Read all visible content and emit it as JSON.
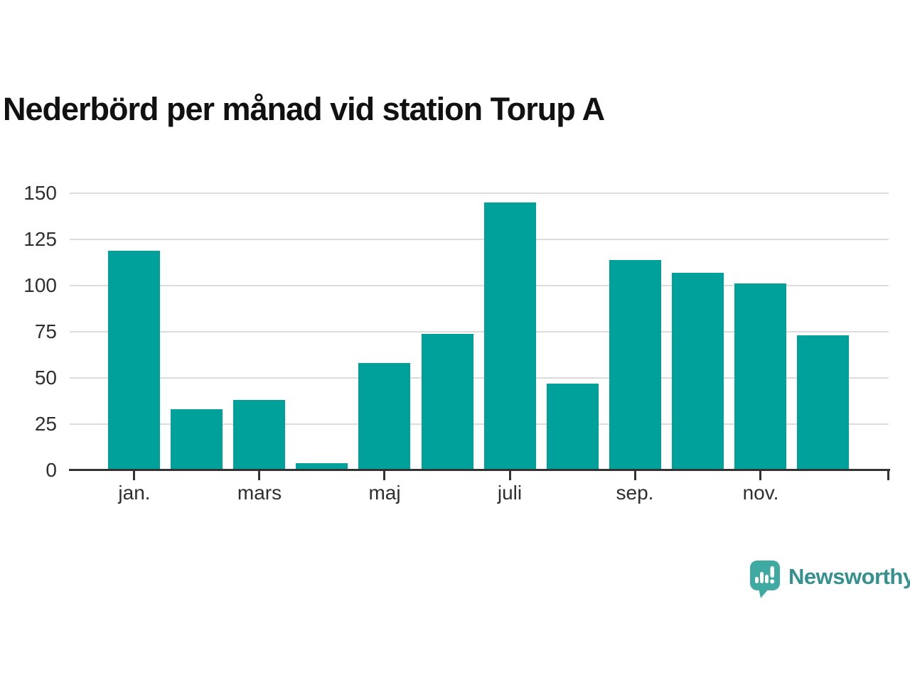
{
  "title": "Nederbörd per månad vid station Torup A",
  "branding": {
    "name": "Newsworthy",
    "text_color": "#35918f",
    "bubble_color": "#3faaa1"
  },
  "chart_data": {
    "type": "bar",
    "title": "Nederbörd per månad vid station Torup A",
    "categories": [
      "jan.",
      "",
      "mars",
      "",
      "maj",
      "",
      "juli",
      "",
      "sep.",
      "",
      "nov.",
      ""
    ],
    "values": [
      119,
      33,
      38,
      4,
      58,
      74,
      145,
      47,
      114,
      107,
      101,
      73
    ],
    "xlabel": "",
    "ylabel": "",
    "y_ticks": [
      0,
      25,
      50,
      75,
      100,
      125,
      150
    ],
    "ylim": [
      0,
      150
    ],
    "bar_color": "#00a19a",
    "grid": true,
    "grid_color": "#dcdcdc",
    "axis_color": "#333333",
    "tick_label_color": "#2f2f2f",
    "legend": false
  }
}
